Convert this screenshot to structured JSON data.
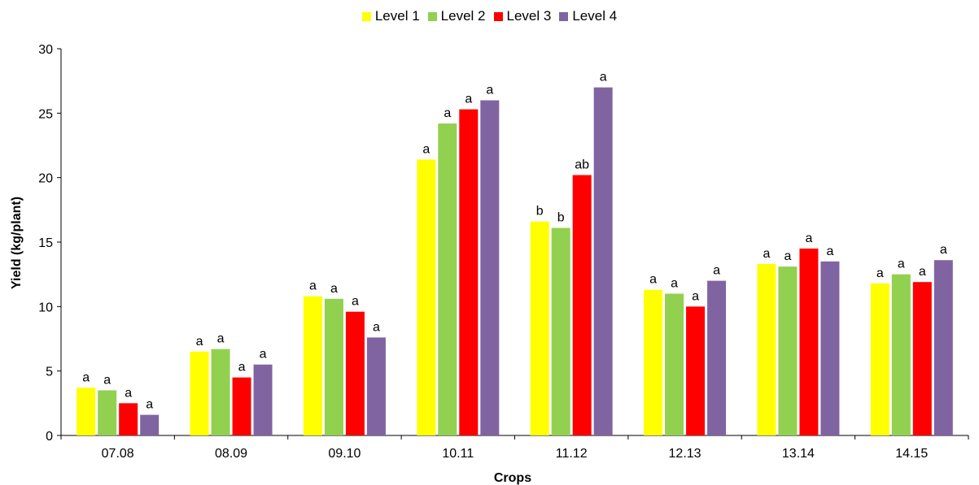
{
  "chart_data": {
    "type": "bar",
    "xlabel": "Crops",
    "ylabel": "Yield (kg/plant)",
    "ylim": [
      0,
      30
    ],
    "yticks": [
      0,
      5,
      10,
      15,
      20,
      25,
      30
    ],
    "grid": false,
    "legend_position": "top-center",
    "categories": [
      "07.08",
      "08.09",
      "09.10",
      "10.11",
      "11.12",
      "12.13",
      "13.14",
      "14.15"
    ],
    "series": [
      {
        "name": "Level 1",
        "color": "#ffff00",
        "values": [
          3.7,
          6.5,
          10.8,
          21.4,
          16.6,
          11.3,
          13.3,
          11.8
        ],
        "labels": [
          "a",
          "a",
          "a",
          "a",
          "b",
          "a",
          "a",
          "a"
        ]
      },
      {
        "name": "Level 2",
        "color": "#92d050",
        "values": [
          3.5,
          6.7,
          10.6,
          24.2,
          16.1,
          11.0,
          13.1,
          12.5
        ],
        "labels": [
          "a",
          "a",
          "a",
          "a",
          "b",
          "a",
          "a",
          "a"
        ]
      },
      {
        "name": "Level 3",
        "color": "#ff0000",
        "values": [
          2.5,
          4.5,
          9.6,
          25.3,
          20.2,
          10.0,
          14.5,
          11.9
        ],
        "labels": [
          "a",
          "a",
          "a",
          "a",
          "ab",
          "a",
          "a",
          "a"
        ]
      },
      {
        "name": "Level 4",
        "color": "#8064a2",
        "values": [
          1.6,
          5.5,
          7.6,
          26.0,
          27.0,
          12.0,
          13.5,
          13.6
        ],
        "labels": [
          "a",
          "a",
          "a",
          "a",
          "a",
          "a",
          "a",
          "a"
        ]
      }
    ]
  }
}
